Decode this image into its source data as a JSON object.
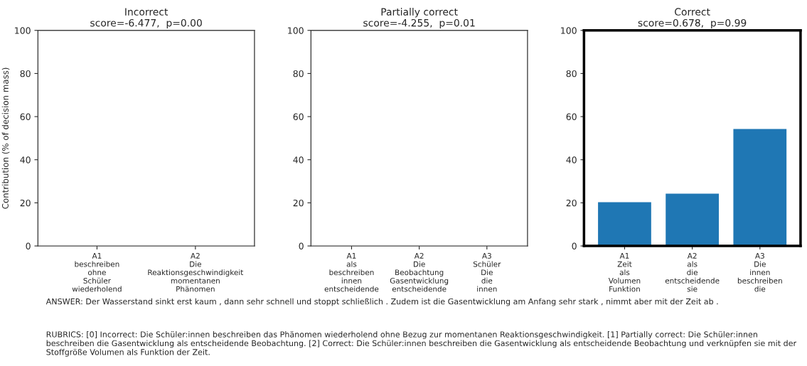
{
  "chart_data": [
    {
      "type": "bar",
      "title": "Incorrect\nscore=-6.477,  p=0.00",
      "ylabel": "Contribution (% of decision mass)",
      "categories": [
        "A1\nbeschreiben\nohne\nSchüler\nwiederholend",
        "A2\nDie\nReaktionsgeschwindigkeit\nmomentanen\nPhänomen"
      ],
      "values": [
        0.2,
        0.1
      ],
      "color": "#1f77b4",
      "ylim": [
        0,
        100
      ],
      "yticks": [
        0,
        20,
        40,
        60,
        80,
        100
      ],
      "annotations": [
        "ANSWER: Der Wasserstand sinkt erst kaum , dann sehr schnell und stoppt schließlich . Zudem ist die Gasentwicklung am Anfang sehr stark , nimmt aber mit der Zeit ab .",
        "RUBRICS: [0] Incorrect: Die Schüler:innen beschreiben das Phänomen wiederholend ohne Bezug zur momentanen Reaktionsgeschwindigkeit. [1] Partially correct: Die Schüler:innen beschreiben die Gasentwicklung als entscheidende Beobachtung. [2] Correct: Die Schüler:innen beschreiben die Gasentwicklung als entscheidende Beobachtung und verknüpfen sie mit der Stoffgröße Volumen als Funktion der Zeit."
      ]
    },
    {
      "type": "bar",
      "title": "Partially correct\nscore=-4.255,  p=0.01",
      "categories": [
        "A1\nals\nbeschreiben\ninnen\nentscheidende",
        "A2\nDie\nBeobachtung\nGasentwicklung\nentscheidende",
        "A3\nSchüler\nDie\ndie\ninnen"
      ],
      "values": [
        0.2,
        0.2,
        0.2
      ],
      "color": "#1f77b4",
      "ylim": [
        0,
        100
      ],
      "yticks": [
        0,
        20,
        40,
        60,
        80,
        100
      ]
    },
    {
      "type": "bar",
      "title": "Correct\nscore=0.678,  p=0.99",
      "categories": [
        "A1\nZeit\nals\nVolumen\nFunktion",
        "A2\nals\ndie\nentscheidende\nsie",
        "A3\nDie\ninnen\nbeschreiben\ndie"
      ],
      "values": [
        20.5,
        24.5,
        54.5
      ],
      "color": "#1f77b4",
      "ylim": [
        0,
        100
      ],
      "yticks": [
        0,
        20,
        40,
        60,
        80,
        100
      ]
    }
  ]
}
